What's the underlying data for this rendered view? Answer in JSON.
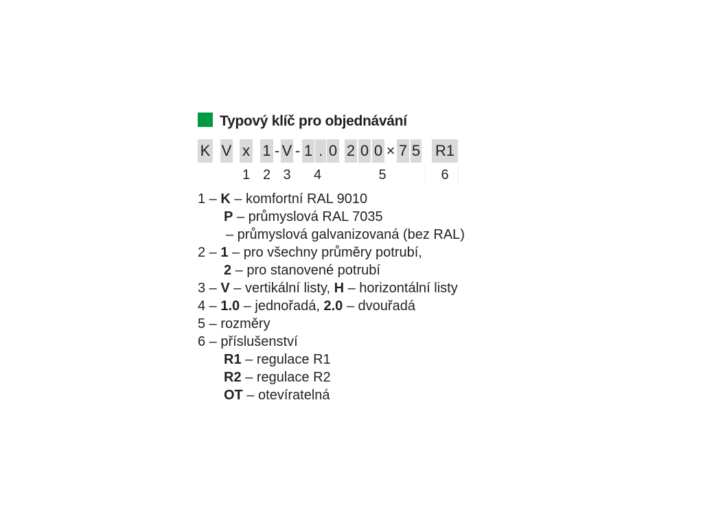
{
  "title": "Typový klíč pro objednávání",
  "accent": "#009a44",
  "code": [
    "K",
    "V",
    "x",
    "1",
    "-",
    "V",
    "-",
    "1",
    ".",
    "0",
    "2",
    "0",
    "0",
    "×",
    "7",
    "5",
    "R1"
  ],
  "indices": [
    "1",
    "2",
    "3",
    "4",
    "5",
    "6"
  ],
  "legend": [
    {
      "pre": "1 – ",
      "b": "K",
      "post": " – komfortní RAL 9010"
    },
    {
      "pre": "",
      "b": "P",
      "post": " – průmyslová RAL 7035"
    },
    {
      "pre": "",
      "b": "",
      "post": "– průmyslová galvanizovaná (bez RAL)"
    },
    {
      "pre": "2 – ",
      "b": "1",
      "post": " – pro všechny průměry potrubí,"
    },
    {
      "pre": "",
      "b": "2",
      "post": " – pro stanovené potrubí"
    },
    {
      "pre": "3 – ",
      "b": "V",
      "post": " – vertikální listy, ",
      "b2": "H",
      "post2": " – horizontální listy"
    },
    {
      "pre": "4 – ",
      "b": "1.0",
      "post": " – jednořadá, ",
      "b2": "2.0",
      "post2": " – dvouřadá"
    },
    {
      "pre": "5 – rozměry",
      "b": "",
      "post": ""
    },
    {
      "pre": "6 – příslušenství",
      "b": "",
      "post": ""
    },
    {
      "pre": "",
      "b": "R1",
      "post": " – regulace R1"
    },
    {
      "pre": "",
      "b": "R2",
      "post": " – regulace R2"
    },
    {
      "pre": "",
      "b": "OT",
      "post": " – otevíratelná"
    }
  ]
}
